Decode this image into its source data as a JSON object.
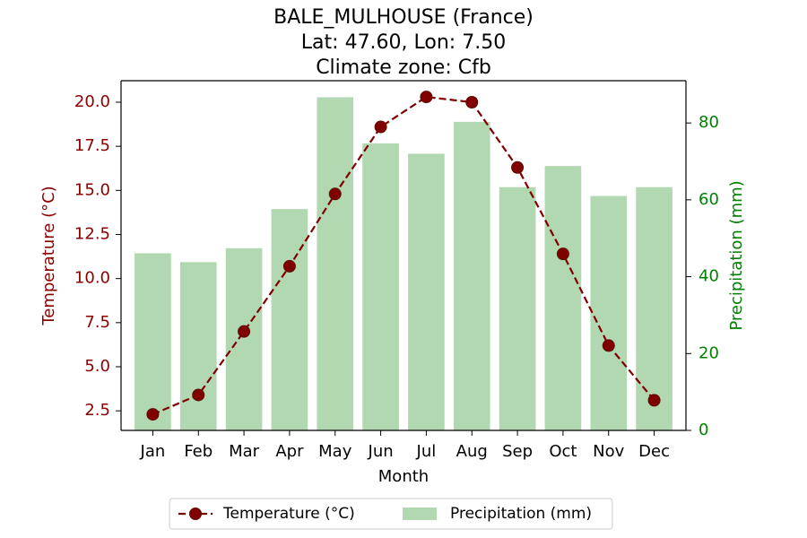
{
  "chart_data": {
    "type": "bar+line",
    "title_lines": [
      "BALE_MULHOUSE (France)",
      "Lat: 47.60, Lon: 7.50",
      "Climate zone: Cfb"
    ],
    "xlabel": "Month",
    "ylabel_left": "Temperature (°C)",
    "ylabel_right": "Precipitation (mm)",
    "categories": [
      "Jan",
      "Feb",
      "Mar",
      "Apr",
      "May",
      "Jun",
      "Jul",
      "Aug",
      "Sep",
      "Oct",
      "Nov",
      "Dec"
    ],
    "series": [
      {
        "name": "Temperature (°C)",
        "axis": "left",
        "kind": "line",
        "color": "#800000",
        "values": [
          2.3,
          3.4,
          7.0,
          10.7,
          14.8,
          18.6,
          20.3,
          20.0,
          16.3,
          11.4,
          6.2,
          3.1
        ]
      },
      {
        "name": "Precipitation (mm)",
        "axis": "right",
        "kind": "bar",
        "color": "#b2d8b2",
        "values": [
          46.1,
          43.8,
          47.4,
          57.6,
          86.7,
          74.7,
          72.0,
          80.3,
          63.3,
          68.8,
          61.0,
          63.3
        ]
      }
    ],
    "ylim_left": [
      1.39,
      21.22
    ],
    "ylim_right": [
      0,
      91
    ],
    "yticks_left": [
      "2.5",
      "5.0",
      "7.5",
      "10.0",
      "12.5",
      "15.0",
      "17.5",
      "20.0"
    ],
    "yticks_right": [
      "0",
      "20",
      "40",
      "60",
      "80"
    ],
    "left_axis_color": "#8b0000",
    "right_axis_color": "#008000",
    "legend_position": "bottom-center",
    "grid": false
  }
}
